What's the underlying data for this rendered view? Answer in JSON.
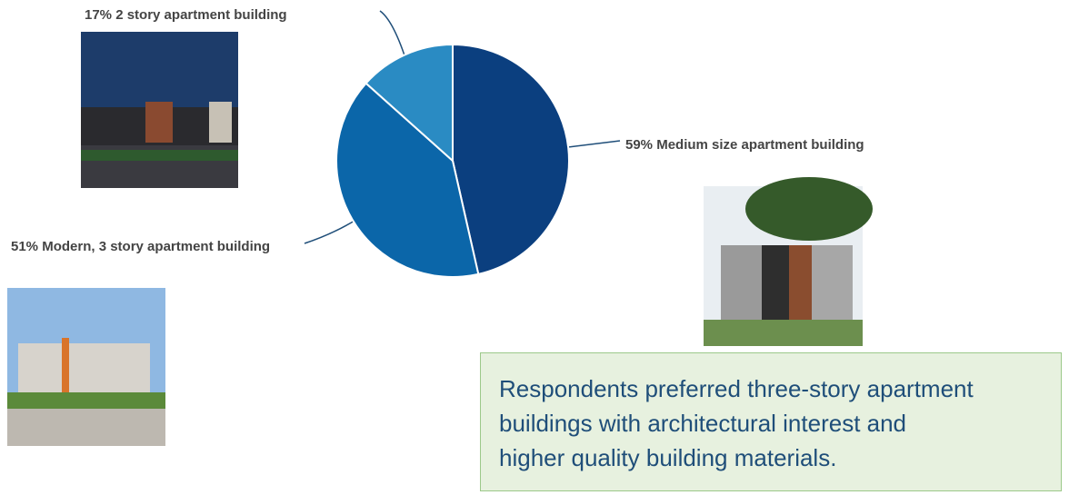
{
  "chart_data": {
    "type": "pie",
    "categories": [
      "Medium size apartment building",
      "Modern, 3 story apartment building",
      "2 story apartment building"
    ],
    "values": [
      59,
      51,
      17
    ],
    "value_labels": [
      "59%",
      "51%",
      "17%"
    ],
    "colors": [
      "#0b3f7f",
      "#0b66a9",
      "#2a8bc3"
    ],
    "note": [
      "Respondents preferred three-story apartment",
      "buildings with architectural interest and",
      "higher quality building materials."
    ]
  }
}
